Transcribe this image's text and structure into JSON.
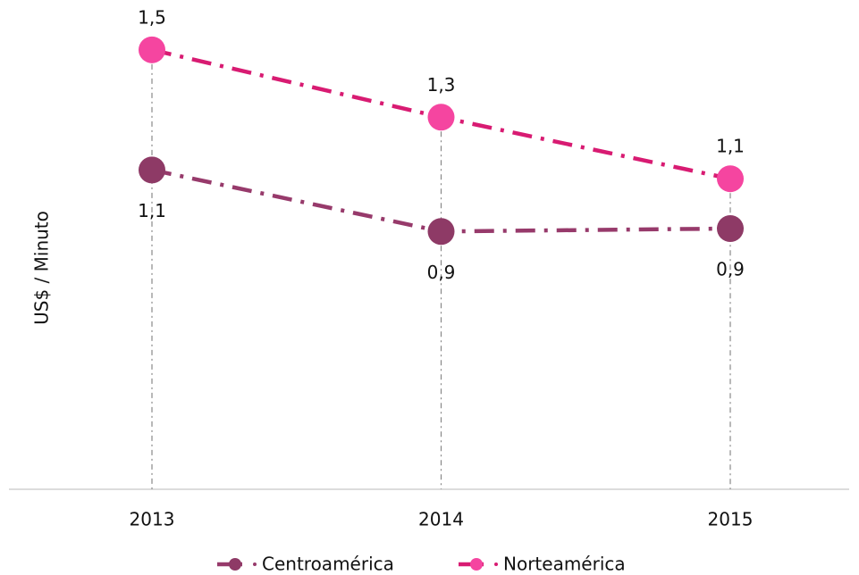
{
  "chart_data": {
    "type": "line",
    "y_label": "US$ / Minuto",
    "categories": [
      "2013",
      "2014",
      "2015"
    ],
    "series": [
      {
        "name": "Centroamérica",
        "color": "#8e3a66",
        "line_color": "#973a6b",
        "values": [
          1.09,
          0.88,
          0.89
        ],
        "value_labels": [
          "1,1",
          "0,9",
          "0,9"
        ],
        "label_position": "below"
      },
      {
        "name": "Norteamérica",
        "color": "#f545a0",
        "line_color": "#d81b72",
        "values": [
          1.5,
          1.27,
          1.06
        ],
        "value_labels": [
          "1,5",
          "1,3",
          "1,1"
        ],
        "label_position": "above"
      }
    ],
    "ylim": [
      0,
      1.6
    ]
  }
}
